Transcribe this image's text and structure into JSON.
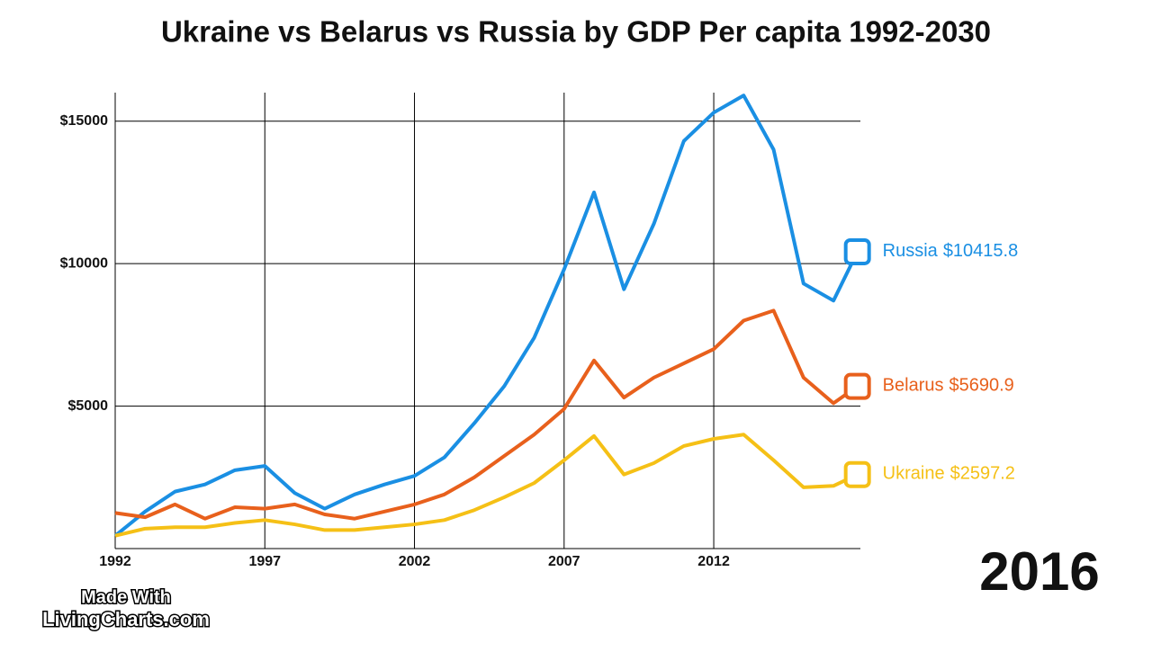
{
  "chart_data": {
    "type": "line",
    "title": "Ukraine vs Belarus vs Russia by GDP Per capita 1992-2030",
    "current_year": "2016",
    "watermark": [
      "Made With",
      "LivingCharts.com"
    ],
    "x": [
      1992,
      1993,
      1994,
      1995,
      1996,
      1997,
      1998,
      1999,
      2000,
      2001,
      2002,
      2003,
      2004,
      2005,
      2006,
      2007,
      2008,
      2009,
      2010,
      2011,
      2012,
      2013,
      2014,
      2015,
      2016,
      2016.8
    ],
    "series": [
      {
        "name": "Russia",
        "color": "#1a8fe3",
        "values": [
          450,
          1300,
          2000,
          2250,
          2750,
          2900,
          1950,
          1400,
          1900,
          2250,
          2550,
          3200,
          4400,
          5700,
          7400,
          9800,
          12500,
          9100,
          11400,
          14300,
          15300,
          15900,
          14000,
          9300,
          8700,
          10415.8
        ],
        "value_labels": [
          null,
          null,
          null,
          null,
          null,
          null,
          null,
          null,
          null,
          null,
          null,
          null,
          null,
          null,
          null,
          null,
          null,
          null,
          null,
          null,
          null,
          null,
          null,
          null,
          null,
          "$10415.8"
        ]
      },
      {
        "name": "Belarus",
        "color": "#e8601c",
        "values": [
          1250,
          1100,
          1550,
          1050,
          1450,
          1400,
          1550,
          1200,
          1050,
          1300,
          1550,
          1900,
          2500,
          3250,
          4000,
          4900,
          6600,
          5300,
          6000,
          6500,
          7000,
          8000,
          8350,
          6000,
          5100,
          5690.9
        ],
        "value_labels": [
          null,
          null,
          null,
          null,
          null,
          null,
          null,
          null,
          null,
          null,
          null,
          null,
          null,
          null,
          null,
          null,
          null,
          null,
          null,
          null,
          null,
          null,
          null,
          null,
          null,
          "$5690.9"
        ]
      },
      {
        "name": "Ukraine",
        "color": "#f5c016",
        "values": [
          450,
          700,
          750,
          750,
          900,
          1000,
          850,
          650,
          650,
          750,
          850,
          1000,
          1350,
          1800,
          2300,
          3100,
          3950,
          2600,
          3000,
          3600,
          3850,
          4000,
          3100,
          2150,
          2200,
          2597.2
        ],
        "value_labels": [
          null,
          null,
          null,
          null,
          null,
          null,
          null,
          null,
          null,
          null,
          null,
          null,
          null,
          null,
          null,
          null,
          null,
          null,
          null,
          null,
          null,
          null,
          null,
          null,
          null,
          "$2597.2"
        ]
      }
    ],
    "xlim": [
      1992,
      2016.9
    ],
    "xticks": [
      1992,
      1997,
      2002,
      2007,
      2012
    ],
    "ylim": [
      0,
      16000
    ],
    "yticks": [
      {
        "value": 5000,
        "label": "$5000"
      },
      {
        "value": 10000,
        "label": "$10000"
      },
      {
        "value": 15000,
        "label": "$15000"
      }
    ],
    "grid": true
  }
}
